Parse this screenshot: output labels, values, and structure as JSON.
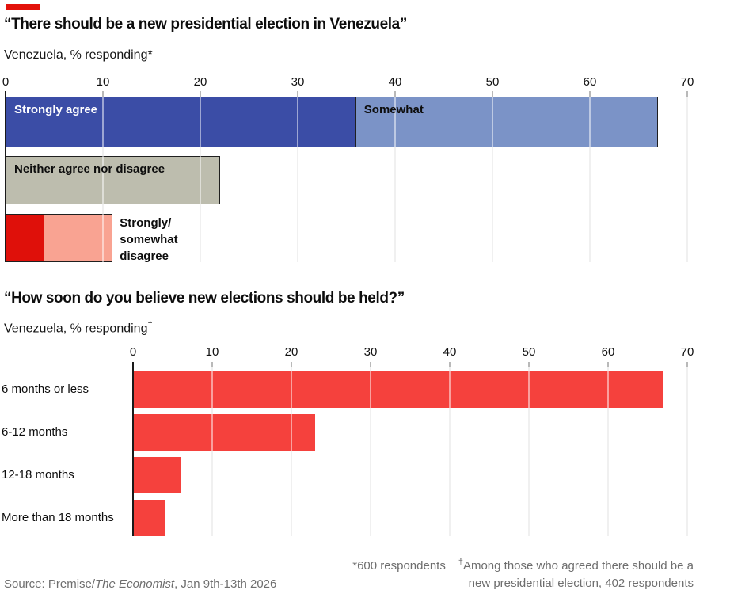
{
  "page": {
    "accent_color": "#e3120b",
    "background": "#ffffff",
    "text_color": "#0d0d0d",
    "muted_text_color": "#6e6e6e",
    "gridline_color": "#e0e0e0",
    "axis_line_color": "#1a1a1a",
    "tick_color": "#b9b9b9",
    "bar_border_color": "#1f1f1f"
  },
  "chart_data": [
    {
      "type": "bar",
      "orientation": "horizontal",
      "stacked": true,
      "title": "“There should be a new presidential election in Venezuela”",
      "subtitle": "Venezuela, % responding*",
      "xlabel": "",
      "ylabel": "",
      "xlim": [
        0,
        70
      ],
      "tick_labels": [
        "0",
        "10",
        "20",
        "30",
        "40",
        "50",
        "60",
        "70"
      ],
      "grid": true,
      "legend_position": "labels-inside-bars",
      "rows": [
        {
          "name": "agree",
          "segments": [
            {
              "label": "Strongly agree",
              "value": 36,
              "color": "#3b4da6",
              "label_color": "#ffffff"
            },
            {
              "label": "Somewhat",
              "value": 31,
              "color": "#7b93c7",
              "label_color": "#0d0d0d"
            }
          ]
        },
        {
          "name": "neither",
          "segments": [
            {
              "label": "Neither agree nor disagree",
              "value": 22,
              "color": "#bdbdae",
              "label_color": "#0d0d0d"
            }
          ]
        },
        {
          "name": "disagree",
          "segments": [
            {
              "label": "",
              "value": 4,
              "color": "#df100a",
              "label_color": "#0d0d0d"
            },
            {
              "label": "",
              "value": 7,
              "color": "#f9a392",
              "label_color": "#0d0d0d"
            }
          ],
          "outside_label": "Strongly/\nsomewhat\ndisagree"
        }
      ]
    },
    {
      "type": "bar",
      "orientation": "horizontal",
      "stacked": false,
      "title": "“How soon do you believe new elections should be held?”",
      "subtitle": "Venezuela, % responding†",
      "subtitle_base": "Venezuela, % responding",
      "subtitle_superscript": "†",
      "xlabel": "",
      "ylabel": "",
      "xlim": [
        0,
        70
      ],
      "tick_labels": [
        "0",
        "10",
        "20",
        "30",
        "40",
        "50",
        "60",
        "70"
      ],
      "grid": true,
      "categories": [
        "6 months or less",
        "6-12 months",
        "12-18 months",
        "More than 18 months"
      ],
      "values": [
        67,
        23,
        6,
        4
      ],
      "bar_color": "#f5413d"
    }
  ],
  "footer": {
    "source_prefix": "Source: Premise/",
    "source_publication": "The Economist",
    "source_suffix": ", Jan 9th-13th 2026",
    "footnote_1": "*600 respondents",
    "footnote_2_marker": "†",
    "footnote_2_line1": "Among those who agreed there should be a",
    "footnote_2_line2": "new presidential election, 402 respondents"
  }
}
